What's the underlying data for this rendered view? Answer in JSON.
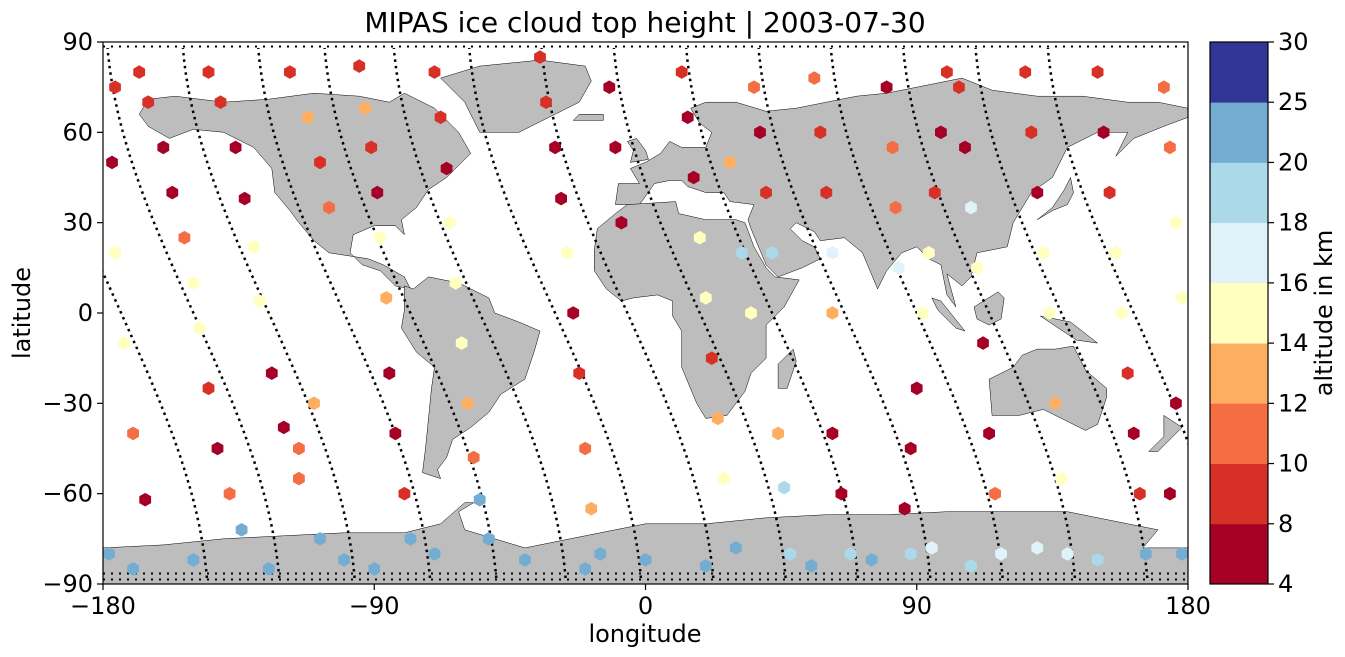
{
  "title": "MIPAS ice cloud top height | 2003-07-30",
  "xlabel": "longitude",
  "ylabel": "latitude",
  "colorbar_label": "altitude in km",
  "x_ticks": [
    {
      "value": -180,
      "label": "−180"
    },
    {
      "value": -90,
      "label": "−90"
    },
    {
      "value": 0,
      "label": "0"
    },
    {
      "value": 90,
      "label": "90"
    },
    {
      "value": 180,
      "label": "180"
    }
  ],
  "y_ticks": [
    {
      "value": -90,
      "label": "−90"
    },
    {
      "value": -60,
      "label": "−60"
    },
    {
      "value": -30,
      "label": "−30"
    },
    {
      "value": 0,
      "label": "0"
    },
    {
      "value": 30,
      "label": "30"
    },
    {
      "value": 60,
      "label": "60"
    },
    {
      "value": 90,
      "label": "90"
    }
  ],
  "colorbar": {
    "boundaries": [
      4,
      8,
      10,
      12,
      14,
      16,
      18,
      20,
      25,
      30
    ],
    "tick_labels": [
      "4",
      "8",
      "10",
      "12",
      "14",
      "16",
      "18",
      "20",
      "25",
      "30"
    ],
    "colors": [
      "#a50026",
      "#d73027",
      "#f46d43",
      "#fdae61",
      "#ffffbf",
      "#e0f3f8",
      "#abd9e9",
      "#74add1",
      "#313695"
    ]
  },
  "land_color": "#bdbdbd",
  "track_marker_color": "#000000",
  "chart_data": {
    "type": "scatter",
    "title": "MIPAS ice cloud top height | 2003-07-30",
    "xlabel": "longitude",
    "ylabel": "latitude",
    "xlim": [
      -180,
      180
    ],
    "ylim": [
      -90,
      90
    ],
    "color_scale": "altitude in km",
    "marker": "hexagon",
    "approximate": true,
    "orbit_tracks_lon_at_equator": [
      -174,
      -150,
      -125,
      -100,
      -78,
      -55,
      -30,
      -6,
      18,
      42,
      66,
      90,
      114,
      138,
      162
    ],
    "points": [
      {
        "lon": -168,
        "lat": 80,
        "alt": 9
      },
      {
        "lon": -165,
        "lat": 70,
        "alt": 9
      },
      {
        "lon": -160,
        "lat": 55,
        "alt": 7
      },
      {
        "lon": -157,
        "lat": 40,
        "alt": 6
      },
      {
        "lon": -153,
        "lat": 25,
        "alt": 11
      },
      {
        "lon": -150,
        "lat": 10,
        "alt": 15
      },
      {
        "lon": -148,
        "lat": -5,
        "alt": 15
      },
      {
        "lon": -145,
        "lat": -25,
        "alt": 9
      },
      {
        "lon": -142,
        "lat": -45,
        "alt": 6
      },
      {
        "lon": -138,
        "lat": -60,
        "alt": 11
      },
      {
        "lon": -134,
        "lat": -72,
        "alt": 22
      },
      {
        "lon": -176,
        "lat": 75,
        "alt": 9
      },
      {
        "lon": -177,
        "lat": 50,
        "alt": 6
      },
      {
        "lon": -176,
        "lat": 20,
        "alt": 15
      },
      {
        "lon": -173,
        "lat": -10,
        "alt": 15
      },
      {
        "lon": -170,
        "lat": -40,
        "alt": 10
      },
      {
        "lon": -166,
        "lat": -62,
        "alt": 6
      },
      {
        "lon": -178,
        "lat": -80,
        "alt": 22
      },
      {
        "lon": -145,
        "lat": 80,
        "alt": 8
      },
      {
        "lon": -141,
        "lat": 70,
        "alt": 9
      },
      {
        "lon": -136,
        "lat": 55,
        "alt": 7
      },
      {
        "lon": -133,
        "lat": 38,
        "alt": 6
      },
      {
        "lon": -130,
        "lat": 22,
        "alt": 15
      },
      {
        "lon": -128,
        "lat": 4,
        "alt": 15
      },
      {
        "lon": -124,
        "lat": -20,
        "alt": 7
      },
      {
        "lon": -120,
        "lat": -38,
        "alt": 6
      },
      {
        "lon": -115,
        "lat": -55,
        "alt": 11
      },
      {
        "lon": -108,
        "lat": -75,
        "alt": 22
      },
      {
        "lon": -118,
        "lat": 80,
        "alt": 9
      },
      {
        "lon": -112,
        "lat": 65,
        "alt": 12
      },
      {
        "lon": -108,
        "lat": 50,
        "alt": 9
      },
      {
        "lon": -105,
        "lat": 35,
        "alt": 11
      },
      {
        "lon": -110,
        "lat": -30,
        "alt": 13
      },
      {
        "lon": -115,
        "lat": -45,
        "alt": 10
      },
      {
        "lon": -95,
        "lat": 82,
        "alt": 9
      },
      {
        "lon": -93,
        "lat": 68,
        "alt": 12
      },
      {
        "lon": -91,
        "lat": 55,
        "alt": 9
      },
      {
        "lon": -89,
        "lat": 40,
        "alt": 7
      },
      {
        "lon": -88,
        "lat": 25,
        "alt": 15
      },
      {
        "lon": -86,
        "lat": 5,
        "alt": 13
      },
      {
        "lon": -85,
        "lat": -20,
        "alt": 6
      },
      {
        "lon": -83,
        "lat": -40,
        "alt": 7
      },
      {
        "lon": -80,
        "lat": -60,
        "alt": 9
      },
      {
        "lon": -78,
        "lat": -75,
        "alt": 22
      },
      {
        "lon": -70,
        "lat": 80,
        "alt": 8
      },
      {
        "lon": -68,
        "lat": 65,
        "alt": 9
      },
      {
        "lon": -66,
        "lat": 48,
        "alt": 6
      },
      {
        "lon": -65,
        "lat": 30,
        "alt": 15
      },
      {
        "lon": -63,
        "lat": 10,
        "alt": 15
      },
      {
        "lon": -61,
        "lat": -10,
        "alt": 15
      },
      {
        "lon": -59,
        "lat": -30,
        "alt": 13
      },
      {
        "lon": -57,
        "lat": -48,
        "alt": 11
      },
      {
        "lon": -55,
        "lat": -62,
        "alt": 22
      },
      {
        "lon": -52,
        "lat": -75,
        "alt": 22
      },
      {
        "lon": -35,
        "lat": 85,
        "alt": 9
      },
      {
        "lon": -33,
        "lat": 70,
        "alt": 8
      },
      {
        "lon": -30,
        "lat": 55,
        "alt": 6
      },
      {
        "lon": -28,
        "lat": 38,
        "alt": 6
      },
      {
        "lon": -26,
        "lat": 20,
        "alt": 15
      },
      {
        "lon": -24,
        "lat": 0,
        "alt": 6
      },
      {
        "lon": -22,
        "lat": -20,
        "alt": 9
      },
      {
        "lon": -20,
        "lat": -45,
        "alt": 11
      },
      {
        "lon": -18,
        "lat": -65,
        "alt": 13
      },
      {
        "lon": -15,
        "lat": -80,
        "alt": 22
      },
      {
        "lon": -12,
        "lat": 75,
        "alt": 6
      },
      {
        "lon": -10,
        "lat": 55,
        "alt": 6
      },
      {
        "lon": -8,
        "lat": 30,
        "alt": 6
      },
      {
        "lon": 12,
        "lat": 80,
        "alt": 9
      },
      {
        "lon": 14,
        "lat": 65,
        "alt": 6
      },
      {
        "lon": 16,
        "lat": 45,
        "alt": 6
      },
      {
        "lon": 18,
        "lat": 25,
        "alt": 15
      },
      {
        "lon": 20,
        "lat": 5,
        "alt": 15
      },
      {
        "lon": 22,
        "lat": -15,
        "alt": 9
      },
      {
        "lon": 24,
        "lat": -35,
        "alt": 13
      },
      {
        "lon": 26,
        "lat": -55,
        "alt": 14
      },
      {
        "lon": 30,
        "lat": -78,
        "alt": 22
      },
      {
        "lon": 28,
        "lat": 50,
        "alt": 13
      },
      {
        "lon": 32,
        "lat": 20,
        "alt": 18
      },
      {
        "lon": 35,
        "lat": 0,
        "alt": 15
      },
      {
        "lon": 36,
        "lat": 75,
        "alt": 11
      },
      {
        "lon": 38,
        "lat": 60,
        "alt": 7
      },
      {
        "lon": 40,
        "lat": 40,
        "alt": 9
      },
      {
        "lon": 42,
        "lat": 20,
        "alt": 19
      },
      {
        "lon": 44,
        "lat": -40,
        "alt": 13
      },
      {
        "lon": 46,
        "lat": -58,
        "alt": 19
      },
      {
        "lon": 48,
        "lat": -80,
        "alt": 19
      },
      {
        "lon": 56,
        "lat": 78,
        "alt": 11
      },
      {
        "lon": 58,
        "lat": 60,
        "alt": 9
      },
      {
        "lon": 60,
        "lat": 40,
        "alt": 9
      },
      {
        "lon": 62,
        "lat": 20,
        "alt": 17
      },
      {
        "lon": 62,
        "lat": 0,
        "alt": 12
      },
      {
        "lon": 62,
        "lat": -40,
        "alt": 7
      },
      {
        "lon": 65,
        "lat": -60,
        "alt": 7
      },
      {
        "lon": 68,
        "lat": -80,
        "alt": 19
      },
      {
        "lon": 80,
        "lat": 75,
        "alt": 7
      },
      {
        "lon": 82,
        "lat": 55,
        "alt": 11
      },
      {
        "lon": 83,
        "lat": 35,
        "alt": 11
      },
      {
        "lon": 84,
        "lat": 15,
        "alt": 17
      },
      {
        "lon": 86,
        "lat": -65,
        "alt": 7
      },
      {
        "lon": 88,
        "lat": -80,
        "alt": 19
      },
      {
        "lon": 88,
        "lat": -45,
        "alt": 6
      },
      {
        "lon": 90,
        "lat": -25,
        "alt": 6
      },
      {
        "lon": 92,
        "lat": 0,
        "alt": 14
      },
      {
        "lon": 94,
        "lat": 20,
        "alt": 14
      },
      {
        "lon": 96,
        "lat": 40,
        "alt": 9
      },
      {
        "lon": 98,
        "lat": 60,
        "alt": 7
      },
      {
        "lon": 100,
        "lat": 80,
        "alt": 9
      },
      {
        "lon": 104,
        "lat": 75,
        "alt": 8
      },
      {
        "lon": 106,
        "lat": 55,
        "alt": 6
      },
      {
        "lon": 108,
        "lat": 35,
        "alt": 17
      },
      {
        "lon": 110,
        "lat": 15,
        "alt": 14
      },
      {
        "lon": 112,
        "lat": -10,
        "alt": 7
      },
      {
        "lon": 114,
        "lat": -40,
        "alt": 7
      },
      {
        "lon": 116,
        "lat": -60,
        "alt": 11
      },
      {
        "lon": 118,
        "lat": -80,
        "alt": 17
      },
      {
        "lon": 126,
        "lat": 80,
        "alt": 9
      },
      {
        "lon": 128,
        "lat": 60,
        "alt": 9
      },
      {
        "lon": 130,
        "lat": 40,
        "alt": 6
      },
      {
        "lon": 132,
        "lat": 20,
        "alt": 15
      },
      {
        "lon": 134,
        "lat": 0,
        "alt": 15
      },
      {
        "lon": 136,
        "lat": -30,
        "alt": 13
      },
      {
        "lon": 138,
        "lat": -55,
        "alt": 14
      },
      {
        "lon": 140,
        "lat": -80,
        "alt": 17
      },
      {
        "lon": 150,
        "lat": 80,
        "alt": 9
      },
      {
        "lon": 152,
        "lat": 60,
        "alt": 7
      },
      {
        "lon": 154,
        "lat": 40,
        "alt": 9
      },
      {
        "lon": 156,
        "lat": 20,
        "alt": 15
      },
      {
        "lon": 158,
        "lat": 0,
        "alt": 15
      },
      {
        "lon": 160,
        "lat": -20,
        "alt": 9
      },
      {
        "lon": 162,
        "lat": -40,
        "alt": 6
      },
      {
        "lon": 164,
        "lat": -60,
        "alt": 9
      },
      {
        "lon": 166,
        "lat": -80,
        "alt": 22
      },
      {
        "lon": 172,
        "lat": 75,
        "alt": 11
      },
      {
        "lon": 174,
        "lat": 55,
        "alt": 11
      },
      {
        "lon": 176,
        "lat": 30,
        "alt": 14
      },
      {
        "lon": 178,
        "lat": 5,
        "alt": 14
      },
      {
        "lon": 176,
        "lat": -30,
        "alt": 7
      },
      {
        "lon": 174,
        "lat": -60,
        "alt": 6
      },
      {
        "lon": 178,
        "lat": -80,
        "alt": 22
      },
      {
        "lon": -170,
        "lat": -85,
        "alt": 22
      },
      {
        "lon": -150,
        "lat": -82,
        "alt": 22
      },
      {
        "lon": -125,
        "lat": -85,
        "alt": 22
      },
      {
        "lon": -100,
        "lat": -82,
        "alt": 22
      },
      {
        "lon": -90,
        "lat": -85,
        "alt": 22
      },
      {
        "lon": -70,
        "lat": -80,
        "alt": 22
      },
      {
        "lon": -40,
        "lat": -82,
        "alt": 22
      },
      {
        "lon": -20,
        "lat": -85,
        "alt": 22
      },
      {
        "lon": 0,
        "lat": -82,
        "alt": 22
      },
      {
        "lon": 20,
        "lat": -84,
        "alt": 22
      },
      {
        "lon": 55,
        "lat": -84,
        "alt": 22
      },
      {
        "lon": 75,
        "lat": -82,
        "alt": 22
      },
      {
        "lon": 95,
        "lat": -78,
        "alt": 17
      },
      {
        "lon": 108,
        "lat": -84,
        "alt": 19
      },
      {
        "lon": 130,
        "lat": -78,
        "alt": 17
      },
      {
        "lon": 150,
        "lat": -82,
        "alt": 19
      }
    ]
  }
}
